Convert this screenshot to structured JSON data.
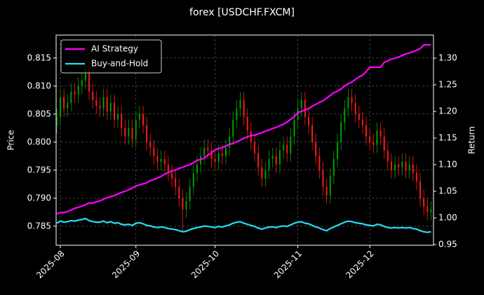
{
  "chart_data": {
    "type": "candlestick",
    "title": "forex [USDCHF.FXCM]",
    "y_label": "Price",
    "y2_label": "Return",
    "xlim": [
      -0.17,
      104.7
    ],
    "xticks": [
      {
        "value": 1,
        "label": "2025-08"
      },
      {
        "value": 22,
        "label": "2025-09"
      },
      {
        "value": 44,
        "label": "2025-10"
      },
      {
        "value": 67,
        "label": "2025-11"
      },
      {
        "value": 87,
        "label": "2025-12"
      }
    ],
    "ylim": [
      0.7816,
      0.8191
    ],
    "yticks": [
      0.785,
      {
        "value": 0.79,
        "label": "0.790"
      },
      0.795,
      {
        "value": 0.8,
        "label": "0.800"
      },
      0.805,
      {
        "value": 0.81,
        "label": "0.810"
      },
      0.815
    ],
    "y2lim": [
      0.9487,
      1.3434
    ],
    "y2ticks": [
      0.95,
      {
        "value": 1,
        "label": "1.00"
      },
      1.05,
      {
        "value": 1.1,
        "label": "1.10"
      },
      1.15,
      {
        "value": 1.2,
        "label": "1.20"
      },
      1.25,
      {
        "value": 1.3,
        "label": "1.30"
      }
    ],
    "grid": true,
    "legend": "upper left",
    "up_color": "#00a000",
    "down_color": "#ff1a1a",
    "open": [
      0.803,
      0.8045,
      0.808,
      0.806,
      0.807,
      0.809,
      0.8085,
      0.81,
      0.811,
      0.813,
      0.809,
      0.8075,
      0.8065,
      0.806,
      0.808,
      0.8055,
      0.807,
      0.804,
      0.805,
      0.8025,
      0.801,
      0.8025,
      0.8005,
      0.804,
      0.805,
      0.803,
      0.8,
      0.799,
      0.7975,
      0.7965,
      0.797,
      0.796,
      0.7945,
      0.7935,
      0.792,
      0.79,
      0.788,
      0.7895,
      0.792,
      0.7945,
      0.796,
      0.7975,
      0.799,
      0.7985,
      0.797,
      0.7965,
      0.798,
      0.7975,
      0.799,
      0.801,
      0.804,
      0.806,
      0.8075,
      0.8045,
      0.802,
      0.8,
      0.798,
      0.7955,
      0.7935,
      0.795,
      0.797,
      0.7975,
      0.796,
      0.7985,
      0.7995,
      0.798,
      0.801,
      0.804,
      0.806,
      0.8075,
      0.8045,
      0.803,
      0.8,
      0.7975,
      0.795,
      0.792,
      0.7905,
      0.794,
      0.797,
      0.8,
      0.8035,
      0.806,
      0.808,
      0.807,
      0.805,
      0.804,
      0.803,
      0.801,
      0.8,
      0.7995,
      0.802,
      0.801,
      0.7985,
      0.7965,
      0.795,
      0.796,
      0.7955,
      0.7965,
      0.795,
      0.796,
      0.7945,
      0.793,
      0.79,
      0.7885,
      0.7875
    ],
    "high": [
      0.806,
      0.8095,
      0.8095,
      0.8085,
      0.8105,
      0.8105,
      0.8115,
      0.8125,
      0.8145,
      0.8145,
      0.8105,
      0.809,
      0.808,
      0.8095,
      0.8095,
      0.8085,
      0.8085,
      0.8065,
      0.8065,
      0.804,
      0.804,
      0.804,
      0.8055,
      0.8065,
      0.8065,
      0.8045,
      0.8015,
      0.8005,
      0.799,
      0.7985,
      0.7985,
      0.7975,
      0.796,
      0.795,
      0.7935,
      0.7915,
      0.791,
      0.7935,
      0.796,
      0.7975,
      0.799,
      0.8005,
      0.8005,
      0.8,
      0.7985,
      0.7995,
      0.7995,
      0.8005,
      0.8025,
      0.8055,
      0.8075,
      0.809,
      0.809,
      0.806,
      0.8035,
      0.8015,
      0.7995,
      0.797,
      0.7965,
      0.7985,
      0.799,
      0.799,
      0.8,
      0.801,
      0.801,
      0.8025,
      0.8055,
      0.8075,
      0.809,
      0.809,
      0.806,
      0.8045,
      0.8015,
      0.799,
      0.7965,
      0.7935,
      0.7955,
      0.7985,
      0.8015,
      0.805,
      0.8075,
      0.8095,
      0.8095,
      0.8085,
      0.8065,
      0.8055,
      0.8045,
      0.8025,
      0.8015,
      0.8035,
      0.8035,
      0.8025,
      0.8,
      0.798,
      0.7975,
      0.7975,
      0.798,
      0.798,
      0.7975,
      0.7975,
      0.796,
      0.7945,
      0.7915,
      0.79,
      0.7895
    ],
    "low": [
      0.8015,
      0.803,
      0.8045,
      0.8045,
      0.8055,
      0.807,
      0.807,
      0.8085,
      0.8095,
      0.8075,
      0.806,
      0.805,
      0.8045,
      0.8045,
      0.804,
      0.804,
      0.8025,
      0.8025,
      0.801,
      0.7995,
      0.7995,
      0.799,
      0.799,
      0.8025,
      0.8015,
      0.7985,
      0.7975,
      0.796,
      0.795,
      0.795,
      0.7945,
      0.793,
      0.792,
      0.7905,
      0.7885,
      0.784,
      0.7865,
      0.788,
      0.7905,
      0.793,
      0.7945,
      0.796,
      0.797,
      0.7955,
      0.795,
      0.795,
      0.796,
      0.796,
      0.7975,
      0.7995,
      0.8025,
      0.8045,
      0.803,
      0.8005,
      0.7985,
      0.7965,
      0.794,
      0.792,
      0.792,
      0.7935,
      0.7955,
      0.7945,
      0.7945,
      0.797,
      0.7965,
      0.7965,
      0.7995,
      0.8025,
      0.8045,
      0.803,
      0.8015,
      0.7985,
      0.796,
      0.7935,
      0.7905,
      0.789,
      0.789,
      0.7925,
      0.7955,
      0.7985,
      0.802,
      0.8045,
      0.8055,
      0.8035,
      0.8025,
      0.8015,
      0.7995,
      0.7985,
      0.798,
      0.798,
      0.7995,
      0.797,
      0.795,
      0.7935,
      0.7935,
      0.794,
      0.794,
      0.7935,
      0.7935,
      0.793,
      0.7915,
      0.7885,
      0.787,
      0.786,
      0.786
    ],
    "close": [
      0.8045,
      0.808,
      0.806,
      0.807,
      0.809,
      0.8085,
      0.81,
      0.811,
      0.813,
      0.809,
      0.8075,
      0.8065,
      0.806,
      0.808,
      0.8055,
      0.807,
      0.804,
      0.805,
      0.8025,
      0.801,
      0.8025,
      0.8005,
      0.804,
      0.805,
      0.803,
      0.8,
      0.799,
      0.7975,
      0.7965,
      0.797,
      0.796,
      0.7945,
      0.7935,
      0.792,
      0.79,
      0.788,
      0.7895,
      0.792,
      0.7945,
      0.796,
      0.7975,
      0.799,
      0.7985,
      0.797,
      0.7965,
      0.798,
      0.7975,
      0.799,
      0.801,
      0.804,
      0.806,
      0.8075,
      0.8045,
      0.802,
      0.8,
      0.798,
      0.7955,
      0.7935,
      0.795,
      0.797,
      0.7975,
      0.796,
      0.7985,
      0.7995,
      0.798,
      0.801,
      0.804,
      0.806,
      0.8075,
      0.8045,
      0.803,
      0.8,
      0.7975,
      0.795,
      0.792,
      0.7905,
      0.794,
      0.797,
      0.8,
      0.8035,
      0.806,
      0.808,
      0.807,
      0.805,
      0.804,
      0.803,
      0.801,
      0.8,
      0.7995,
      0.802,
      0.801,
      0.7985,
      0.7965,
      0.795,
      0.796,
      0.7955,
      0.7965,
      0.795,
      0.796,
      0.7945,
      0.793,
      0.79,
      0.7885,
      0.7875,
      0.788
    ],
    "series": [
      {
        "name": "AI Strategy",
        "color": "#ff00ff",
        "axis": "y2",
        "values": [
          1.008,
          1.01,
          1.01,
          1.012,
          1.015,
          1.018,
          1.02,
          1.022,
          1.025,
          1.028,
          1.028,
          1.03,
          1.032,
          1.035,
          1.038,
          1.04,
          1.042,
          1.045,
          1.048,
          1.05,
          1.053,
          1.056,
          1.06,
          1.062,
          1.064,
          1.066,
          1.07,
          1.072,
          1.075,
          1.078,
          1.082,
          1.085,
          1.088,
          1.09,
          1.093,
          1.095,
          1.098,
          1.1,
          1.104,
          1.108,
          1.11,
          1.112,
          1.118,
          1.122,
          1.128,
          1.13,
          1.132,
          1.135,
          1.138,
          1.14,
          1.143,
          1.146,
          1.15,
          1.152,
          1.155,
          1.155,
          1.158,
          1.16,
          1.163,
          1.165,
          1.168,
          1.17,
          1.173,
          1.176,
          1.18,
          1.185,
          1.19,
          1.198,
          1.2,
          1.203,
          1.205,
          1.21,
          1.213,
          1.217,
          1.22,
          1.225,
          1.23,
          1.235,
          1.238,
          1.242,
          1.248,
          1.252,
          1.255,
          1.26,
          1.265,
          1.268,
          1.275,
          1.283,
          1.283,
          1.283,
          1.283,
          1.292,
          1.295,
          1.298,
          1.3,
          1.302,
          1.305,
          1.308,
          1.31,
          1.312,
          1.315,
          1.318,
          1.325,
          1.325,
          1.325
        ]
      },
      {
        "name": "Buy-and-Hold",
        "color": "#22e0ee",
        "axis": "y2",
        "values": [
          0.99,
          0.994,
          0.992,
          0.993,
          0.995,
          0.994,
          0.996,
          0.997,
          0.999,
          0.995,
          0.993,
          0.992,
          0.992,
          0.994,
          0.991,
          0.993,
          0.99,
          0.991,
          0.988,
          0.987,
          0.988,
          0.986,
          0.99,
          0.991,
          0.989,
          0.986,
          0.985,
          0.983,
          0.982,
          0.983,
          0.982,
          0.98,
          0.979,
          0.978,
          0.976,
          0.974,
          0.975,
          0.978,
          0.98,
          0.982,
          0.983,
          0.985,
          0.984,
          0.983,
          0.982,
          0.984,
          0.983,
          0.985,
          0.987,
          0.99,
          0.992,
          0.993,
          0.99,
          0.988,
          0.986,
          0.984,
          0.981,
          0.979,
          0.981,
          0.983,
          0.983,
          0.982,
          0.984,
          0.985,
          0.984,
          0.987,
          0.99,
          0.992,
          0.993,
          0.99,
          0.989,
          0.986,
          0.983,
          0.981,
          0.978,
          0.976,
          0.98,
          0.983,
          0.986,
          0.989,
          0.992,
          0.994,
          0.993,
          0.991,
          0.99,
          0.989,
          0.987,
          0.986,
          0.985,
          0.988,
          0.987,
          0.984,
          0.982,
          0.981,
          0.982,
          0.981,
          0.982,
          0.981,
          0.982,
          0.98,
          0.979,
          0.976,
          0.974,
          0.973,
          0.974
        ]
      }
    ]
  }
}
